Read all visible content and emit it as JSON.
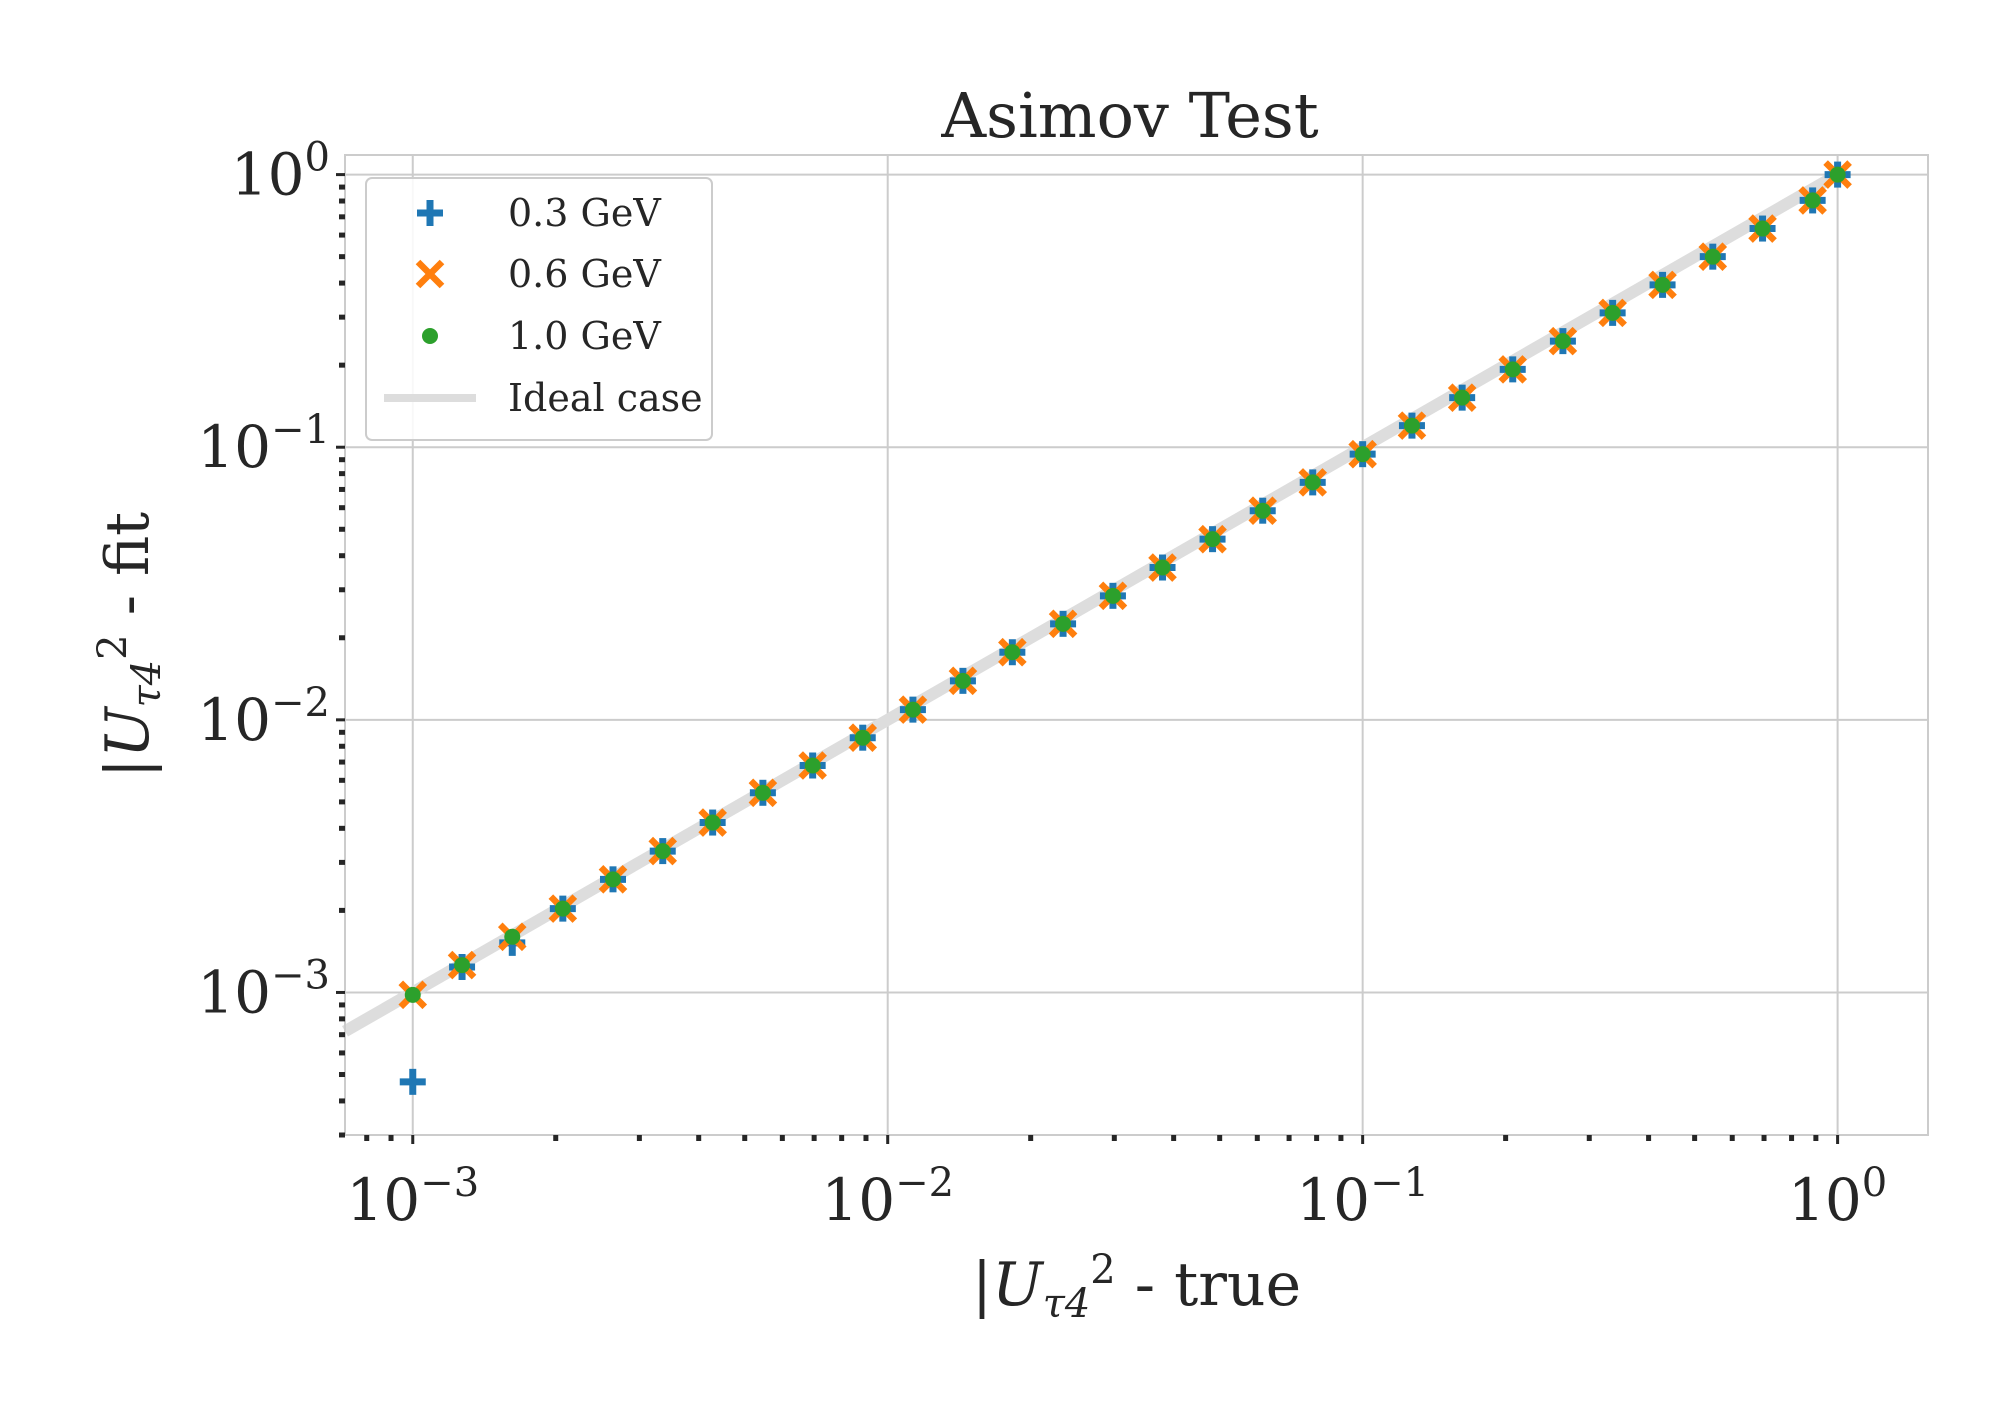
{
  "chart_data": {
    "type": "scatter",
    "title": "Asimov Test",
    "xlabel": {
      "base": "|U",
      "sub": "τ4",
      "sup": "2",
      "suffix": " - true"
    },
    "ylabel": {
      "base": "|U",
      "sub": "τ4",
      "sup": "2",
      "suffix": " - fit"
    },
    "xscale": "log",
    "yscale": "log",
    "xlim": [
      0.00072,
      1.55
    ],
    "ylim": [
      0.0003,
      1.18
    ],
    "grid": true,
    "legend_position": "top-left",
    "x_ticks": [
      {
        "value": 0.001,
        "base": "10",
        "exp": "−3"
      },
      {
        "value": 0.01,
        "base": "10",
        "exp": "−2"
      },
      {
        "value": 0.1,
        "base": "10",
        "exp": "−1"
      },
      {
        "value": 1,
        "base": "10",
        "exp": "0"
      }
    ],
    "y_ticks": [
      {
        "value": 0.001,
        "base": "10",
        "exp": "−3"
      },
      {
        "value": 0.01,
        "base": "10",
        "exp": "−2"
      },
      {
        "value": 0.1,
        "base": "10",
        "exp": "−1"
      },
      {
        "value": 1,
        "base": "10",
        "exp": "0"
      }
    ],
    "x": [
      0.001,
      0.00127,
      0.00162,
      0.00207,
      0.00264,
      0.00336,
      0.00428,
      0.00546,
      0.00695,
      0.00886,
      0.0113,
      0.0144,
      0.0183,
      0.0234,
      0.0298,
      0.0379,
      0.0483,
      0.0616,
      0.0785,
      0.1,
      0.127,
      0.162,
      0.207,
      0.264,
      0.336,
      0.428,
      0.546,
      0.695,
      0.886,
      1.0
    ],
    "series": [
      {
        "name": "0.3 GeV",
        "marker": "plus",
        "color": "#1f77b4",
        "values": [
          0.00047,
          0.00124,
          0.00152,
          0.00203,
          0.0026,
          0.0033,
          0.0042,
          0.0054,
          0.0068,
          0.0086,
          0.0109,
          0.0139,
          0.0177,
          0.0225,
          0.0285,
          0.0362,
          0.046,
          0.0585,
          0.0743,
          0.0943,
          0.12,
          0.152,
          0.193,
          0.245,
          0.311,
          0.394,
          0.5,
          0.634,
          0.804,
          1.0
        ]
      },
      {
        "name": "0.6 GeV",
        "marker": "x",
        "color": "#ff7f0e",
        "values": [
          0.00098,
          0.00126,
          0.0016,
          0.00203,
          0.0026,
          0.0033,
          0.0042,
          0.0054,
          0.0068,
          0.0086,
          0.0109,
          0.0139,
          0.0177,
          0.0225,
          0.0285,
          0.0362,
          0.046,
          0.0585,
          0.0743,
          0.0943,
          0.12,
          0.152,
          0.193,
          0.245,
          0.311,
          0.394,
          0.5,
          0.634,
          0.804,
          1.0
        ]
      },
      {
        "name": "1.0 GeV",
        "marker": "dot",
        "color": "#2ca02c",
        "values": [
          0.00098,
          0.00126,
          0.0016,
          0.00203,
          0.0026,
          0.0033,
          0.0042,
          0.0054,
          0.0068,
          0.0086,
          0.0109,
          0.0139,
          0.0177,
          0.0225,
          0.0285,
          0.0362,
          0.046,
          0.0585,
          0.0743,
          0.0943,
          0.12,
          0.152,
          0.193,
          0.245,
          0.311,
          0.394,
          0.5,
          0.634,
          0.804,
          1.0
        ]
      }
    ],
    "reference_line": {
      "name": "Ideal case",
      "color": "#dddddd",
      "x": [
        0.00072,
        1.0
      ],
      "y": [
        0.00072,
        1.0
      ]
    }
  }
}
